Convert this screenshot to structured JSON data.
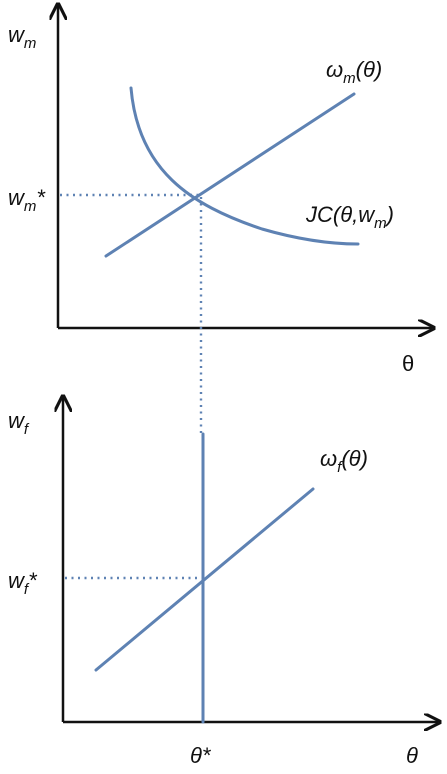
{
  "top_panel": {
    "y_axis_label": "w",
    "y_axis_sub": "m",
    "x_axis_label": "θ",
    "y_star_label": "w",
    "y_star_sub": "m",
    "y_star_mark": "*",
    "wage_curve_label": "ω",
    "wage_curve_sub": "m",
    "wage_curve_arg": "(θ)",
    "jc_curve_label": "JC(θ,w",
    "jc_curve_sub": "m",
    "jc_curve_close": ")"
  },
  "bottom_panel": {
    "y_axis_label": "w",
    "y_axis_sub": "f",
    "x_axis_label": "θ",
    "y_star_label": "w",
    "y_star_sub": "f",
    "y_star_mark": "*",
    "wage_curve_label": "ω",
    "wage_curve_sub": "f",
    "wage_curve_arg": "(θ)",
    "theta_star_label": "θ*"
  },
  "colors": {
    "curve": "#5e82b3",
    "axis": "#111111"
  }
}
